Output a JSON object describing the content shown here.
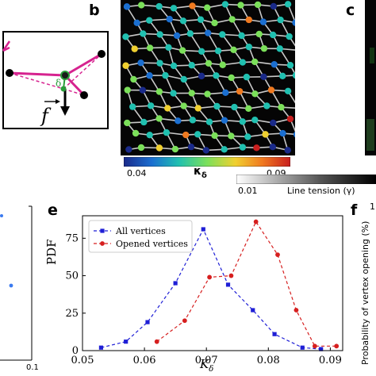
{
  "panels": {
    "b": "b",
    "c": "c",
    "e": "e",
    "f": "f"
  },
  "panel_a": {
    "delta_label": "δ",
    "force_label": "f"
  },
  "panel_b": {
    "colorbar_label": "κ",
    "colorbar_sub": "δ",
    "colorbar_min": "0.04",
    "colorbar_max": "0.09",
    "colorbar_colors": [
      "#1a2a8a",
      "#1b6fd1",
      "#20c0b0",
      "#7be05a",
      "#f0d030",
      "#f07a20",
      "#c81e1e"
    ]
  },
  "panel_c": {
    "colorbar_min": "0.01",
    "colorbar_label": "Line tension (γ)"
  },
  "panel_d": {
    "tick_label": "0.1"
  },
  "panel_f": {
    "ylabel": "Probability of vertex opening (%)",
    "tick_top": "1"
  },
  "chart_data": {
    "type": "line",
    "xlabel": "K",
    "xlabel_sub": "δ",
    "ylabel": "PDF",
    "xlim": [
      0.05,
      0.092
    ],
    "ylim": [
      0,
      90
    ],
    "xticks": [
      "0.05",
      "0.06",
      "0.07",
      "0.08",
      "0.09"
    ],
    "yticks": [
      "0",
      "25",
      "50",
      "75"
    ],
    "legend_position": "upper-left",
    "series": [
      {
        "name": "All vertices",
        "color": "#1f1fd6",
        "marker": "square",
        "x": [
          0.053,
          0.057,
          0.0605,
          0.065,
          0.0695,
          0.0735,
          0.0775,
          0.081,
          0.0855,
          0.0885
        ],
        "y": [
          2,
          6,
          19,
          45,
          81,
          44,
          27,
          11,
          2,
          1
        ]
      },
      {
        "name": "Opened vertices",
        "color": "#d61f1f",
        "marker": "circle",
        "x": [
          0.062,
          0.0665,
          0.0705,
          0.074,
          0.078,
          0.0815,
          0.0845,
          0.0875,
          0.091
        ],
        "y": [
          6,
          20,
          49,
          50,
          86,
          64,
          27,
          3,
          3
        ]
      }
    ]
  }
}
